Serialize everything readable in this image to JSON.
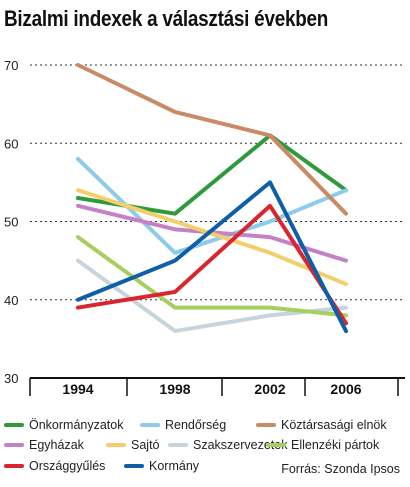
{
  "chart_data": {
    "type": "line",
    "title": "Bizalmi indexek a választási években",
    "x": [
      "1994",
      "1998",
      "2002",
      "2006"
    ],
    "ylim": [
      30,
      70
    ],
    "yticks": [
      30,
      40,
      50,
      60,
      70
    ],
    "grid": true,
    "legend_position": "bottom",
    "series": [
      {
        "name": "Önkormányzatok",
        "color": "#2e9a3c",
        "values": [
          53,
          51,
          61,
          54
        ]
      },
      {
        "name": "Rendőrség",
        "color": "#8ecbea",
        "values": [
          58,
          46,
          50,
          54
        ]
      },
      {
        "name": "Köztársasági elnök",
        "color": "#c98b66",
        "values": [
          70,
          64,
          61,
          51
        ]
      },
      {
        "name": "Egyházak",
        "color": "#c481c4",
        "values": [
          52,
          49,
          48,
          45
        ]
      },
      {
        "name": "Sajtó",
        "color": "#f2cf6a",
        "values": [
          54,
          50,
          46,
          42
        ]
      },
      {
        "name": "Szakszervezetek",
        "color": "#c8d4dc",
        "values": [
          45,
          36,
          38,
          39
        ]
      },
      {
        "name": "Ellenzéki pártok",
        "color": "#a7cf60",
        "values": [
          48,
          39,
          39,
          38
        ]
      },
      {
        "name": "Országgyűlés",
        "color": "#d9252e",
        "values": [
          39,
          41,
          52,
          37
        ]
      },
      {
        "name": "Kormány",
        "color": "#0f5fa8",
        "values": [
          40,
          45,
          55,
          36
        ]
      }
    ],
    "source": "Forrás: Szonda Ipsos"
  }
}
